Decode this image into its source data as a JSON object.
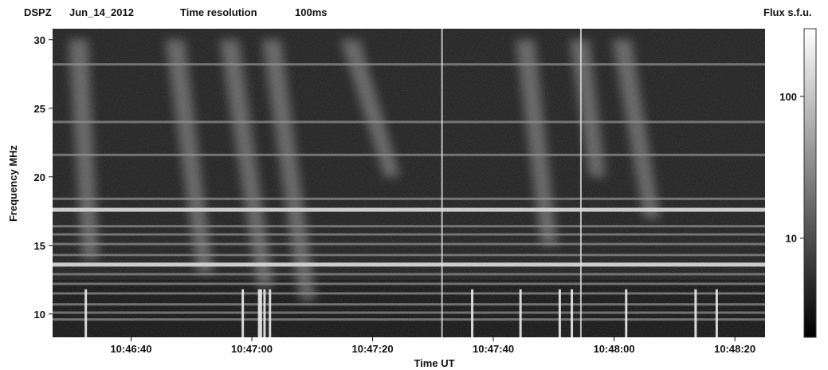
{
  "header": {
    "instrument": "DSPZ",
    "date": "Jun_14_2012",
    "resolution_label": "Time resolution",
    "resolution_value": "100ms",
    "flux_label": "Flux s.f.u."
  },
  "chart_data": {
    "type": "heatmap",
    "xlabel": "Time UT",
    "ylabel": "Frequency MHz",
    "x_ticks": [
      "10:46:40",
      "10:47:00",
      "10:47:20",
      "10:47:40",
      "10:48:00",
      "10:48:20"
    ],
    "x_tick_seconds": [
      40,
      60,
      80,
      100,
      120,
      140
    ],
    "xlim_seconds_after_10_46": [
      27,
      145
    ],
    "y_ticks": [
      10,
      15,
      20,
      25,
      30
    ],
    "ylim": [
      8.3,
      30.8
    ],
    "colorbar": {
      "label": "Flux s.f.u.",
      "scale": "log",
      "ticks": [
        10,
        100
      ],
      "range": [
        2,
        300
      ],
      "colormap": "grayscale"
    },
    "features": {
      "horizontal_bands_mhz": [
        9.6,
        10.1,
        10.7,
        11.5,
        12.2,
        12.9,
        13.6,
        14.3,
        15.1,
        15.8,
        16.4,
        17.6,
        18.4,
        21.6,
        24.0,
        28.2
      ],
      "strong_band_mhz": [
        17.6,
        13.6
      ],
      "burst_drifts": [
        {
          "t_start": 31,
          "t_end": 33,
          "f_low": 14,
          "f_high": 30
        },
        {
          "t_start": 47,
          "t_end": 52,
          "f_low": 13,
          "f_high": 30
        },
        {
          "t_start": 56,
          "t_end": 62,
          "f_low": 12,
          "f_high": 30
        },
        {
          "t_start": 63,
          "t_end": 69,
          "f_low": 11,
          "f_high": 30
        },
        {
          "t_start": 76,
          "t_end": 83,
          "f_low": 20,
          "f_high": 30
        },
        {
          "t_start": 105,
          "t_end": 109,
          "f_low": 15,
          "f_high": 30
        },
        {
          "t_start": 114,
          "t_end": 117,
          "f_low": 20,
          "f_high": 30
        },
        {
          "t_start": 121,
          "t_end": 126,
          "f_low": 17,
          "f_high": 30
        }
      ],
      "vertical_spikes_seconds": [
        32.5,
        58.5,
        61.2,
        61.5,
        62.1,
        63.0,
        96.5,
        104.5,
        111.0,
        113.0,
        122.0,
        133.5,
        137.0
      ],
      "vertical_lines_seconds": [
        91.5,
        114.5
      ]
    }
  }
}
